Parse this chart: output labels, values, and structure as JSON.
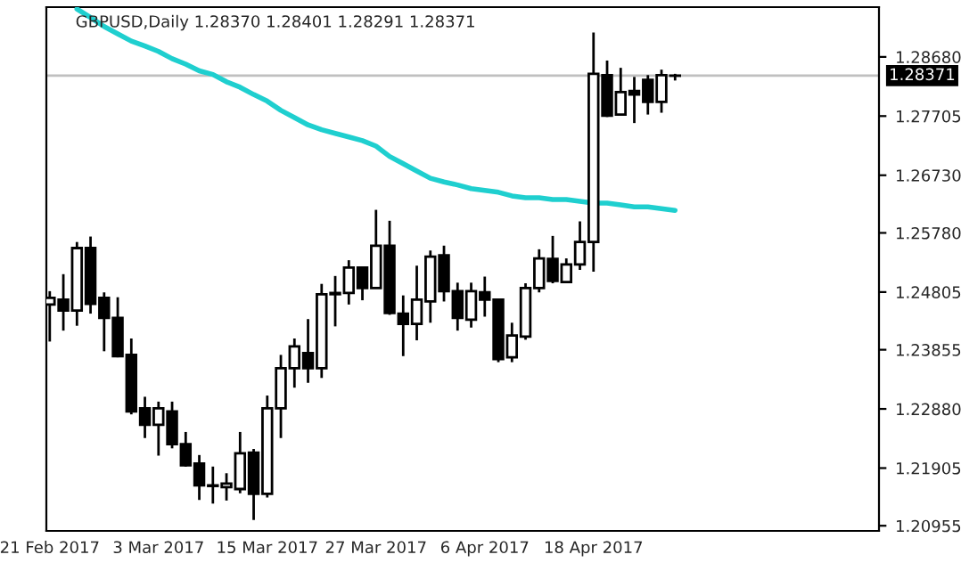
{
  "chart_data": {
    "type": "candlestick",
    "title": "GBPUSD,Daily 1.28370 1.28401 1.28291 1.28371",
    "categories": [
      "21 Feb 2017",
      null,
      null,
      null,
      null,
      null,
      null,
      null,
      "3 Mar 2017",
      null,
      null,
      null,
      null,
      null,
      null,
      null,
      "15 Mar 2017",
      null,
      null,
      null,
      null,
      null,
      null,
      null,
      "27 Mar 2017",
      null,
      null,
      null,
      null,
      null,
      null,
      null,
      "6 Apr 2017",
      null,
      null,
      null,
      null,
      null,
      null,
      null,
      "18 Apr 2017",
      null,
      null,
      null,
      null,
      null,
      null
    ],
    "ohlc": [
      [
        1.246,
        1.2482,
        1.2399,
        1.2471
      ],
      [
        1.2468,
        1.251,
        1.2417,
        1.245
      ],
      [
        1.245,
        1.2563,
        1.2425,
        1.2553
      ],
      [
        1.2553,
        1.2572,
        1.2445,
        1.2461
      ],
      [
        1.2471,
        1.248,
        1.2383,
        1.2438
      ],
      [
        1.2438,
        1.2472,
        1.2373,
        1.2375
      ],
      [
        1.2377,
        1.2404,
        1.2279,
        1.2284
      ],
      [
        1.2289,
        1.2308,
        1.224,
        1.2262
      ],
      [
        1.2262,
        1.23,
        1.2211,
        1.2289
      ],
      [
        1.2284,
        1.23,
        1.2223,
        1.223
      ],
      [
        1.223,
        1.225,
        1.2193,
        1.2195
      ],
      [
        1.2198,
        1.2212,
        1.2138,
        1.2162
      ],
      [
        1.2162,
        1.2193,
        1.2132,
        1.2161
      ],
      [
        1.2159,
        1.2182,
        1.2137,
        1.2165
      ],
      [
        1.2156,
        1.225,
        1.2149,
        1.2215
      ],
      [
        1.2216,
        1.2222,
        1.2105,
        1.2148
      ],
      [
        1.2148,
        1.231,
        1.2142,
        1.2289
      ],
      [
        1.2289,
        1.2377,
        1.224,
        1.2355
      ],
      [
        1.2355,
        1.2404,
        1.2323,
        1.2391
      ],
      [
        1.238,
        1.2436,
        1.2331,
        1.2355
      ],
      [
        1.2355,
        1.2494,
        1.2339,
        1.2477
      ],
      [
        1.2479,
        1.2507,
        1.2424,
        1.2477
      ],
      [
        1.2479,
        1.2533,
        1.246,
        1.2521
      ],
      [
        1.2521,
        1.2521,
        1.2467,
        1.2487
      ],
      [
        1.2487,
        1.2616,
        1.2487,
        1.2557
      ],
      [
        1.2557,
        1.2598,
        1.2443,
        1.2446
      ],
      [
        1.2445,
        1.2475,
        1.2375,
        1.2428
      ],
      [
        1.2428,
        1.2524,
        1.2401,
        1.2468
      ],
      [
        1.2465,
        1.2549,
        1.243,
        1.2539
      ],
      [
        1.2541,
        1.2557,
        1.2465,
        1.2482
      ],
      [
        1.2482,
        1.2496,
        1.2417,
        1.2438
      ],
      [
        1.2435,
        1.2496,
        1.2422,
        1.2482
      ],
      [
        1.248,
        1.2506,
        1.244,
        1.2468
      ],
      [
        1.2468,
        1.2468,
        1.2365,
        1.237
      ],
      [
        1.2373,
        1.243,
        1.2365,
        1.2409
      ],
      [
        1.2407,
        1.2495,
        1.2402,
        1.2487
      ],
      [
        1.2487,
        1.2551,
        1.248,
        1.2536
      ],
      [
        1.2535,
        1.2573,
        1.2495,
        1.2499
      ],
      [
        1.2497,
        1.2536,
        1.2497,
        1.2526
      ],
      [
        1.2526,
        1.2597,
        1.2517,
        1.2563
      ],
      [
        1.2563,
        1.2908,
        1.2514,
        1.284
      ],
      [
        1.2838,
        1.2862,
        1.2769,
        1.2771
      ],
      [
        1.2773,
        1.285,
        1.2773,
        1.281
      ],
      [
        1.2812,
        1.2835,
        1.2759,
        1.2806
      ],
      [
        1.283,
        1.2838,
        1.2773,
        1.2794
      ],
      [
        1.2794,
        1.2847,
        1.2776,
        1.2838
      ],
      [
        1.2837,
        1.28401,
        1.28291,
        1.28371
      ]
    ],
    "series": [
      {
        "type": "line",
        "color": "#1fcfcf",
        "values": [
          null,
          null,
          1.2947,
          1.2933,
          1.2918,
          1.2906,
          1.2894,
          1.2886,
          1.2877,
          1.2865,
          1.2856,
          1.2845,
          1.2839,
          1.2827,
          1.2818,
          1.2806,
          1.2795,
          1.278,
          1.2768,
          1.2756,
          1.2748,
          1.2742,
          1.2736,
          1.273,
          1.2721,
          1.2704,
          1.2692,
          1.268,
          1.2668,
          1.2662,
          1.2657,
          1.2651,
          1.2648,
          1.2645,
          1.2639,
          1.2636,
          1.2636,
          1.2633,
          1.2633,
          1.263,
          1.2627,
          1.2627,
          1.2624,
          1.2621,
          1.2621,
          1.2618,
          1.2615
        ]
      }
    ],
    "ylim": [
      1.2087,
      1.295
    ],
    "yticks": [
      {
        "value": 1.2868,
        "label": "1.28680"
      },
      {
        "value": 1.27705,
        "label": "1.27705"
      },
      {
        "value": 1.2673,
        "label": "1.26730"
      },
      {
        "value": 1.2578,
        "label": "1.25780"
      },
      {
        "value": 1.24805,
        "label": "1.24805"
      },
      {
        "value": 1.23855,
        "label": "1.23855"
      },
      {
        "value": 1.2288,
        "label": "1.22880"
      },
      {
        "value": 1.21905,
        "label": "1.21905"
      },
      {
        "value": 1.20955,
        "label": "1.20955"
      }
    ],
    "ref_lines": [
      {
        "axis": "y",
        "value": 1.28371,
        "label": "1.28371",
        "color": "#c0c0c0"
      }
    ]
  }
}
